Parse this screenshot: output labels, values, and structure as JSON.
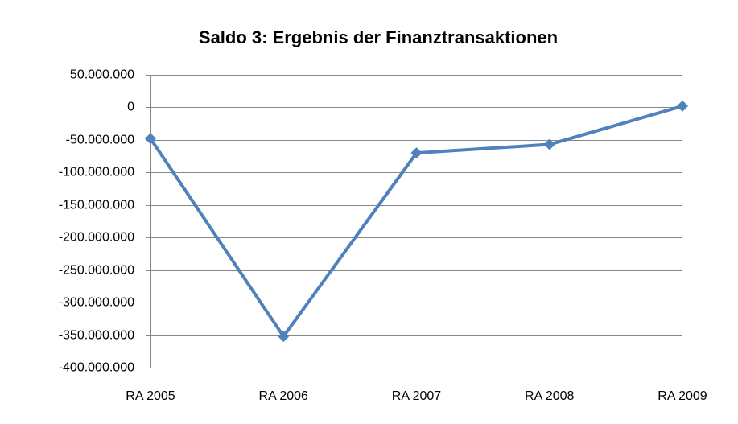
{
  "chart_data": {
    "type": "line",
    "title": "Saldo 3: Ergebnis der Finanztransaktionen",
    "categories": [
      "RA 2005",
      "RA 2006",
      "RA 2007",
      "RA 2008",
      "RA 2009"
    ],
    "values": [
      -48000000,
      -352000000,
      -70000000,
      -57000000,
      2000000
    ],
    "color": "#4f81bd",
    "ylim": [
      -400000000,
      50000000
    ],
    "yticks": [
      {
        "value": -400000000,
        "label": "-400.000.000"
      },
      {
        "value": -350000000,
        "label": "-350.000.000"
      },
      {
        "value": -300000000,
        "label": "-300.000.000"
      },
      {
        "value": -250000000,
        "label": "-250.000.000"
      },
      {
        "value": -200000000,
        "label": "-200.000.000"
      },
      {
        "value": -150000000,
        "label": "-150.000.000"
      },
      {
        "value": -100000000,
        "label": "-100.000.000"
      },
      {
        "value": -50000000,
        "label": "-50.000.000"
      },
      0,
      {
        "value": 50000000,
        "label": "50.000.000"
      }
    ],
    "grid": true
  }
}
